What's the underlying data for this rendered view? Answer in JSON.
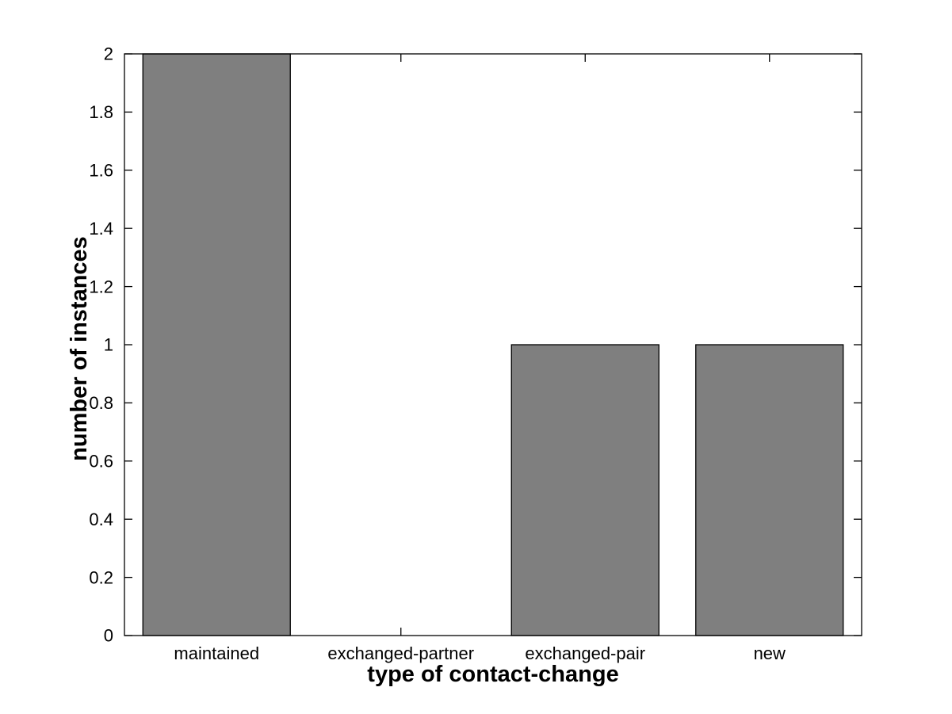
{
  "window": {
    "background": "#ffffff"
  },
  "chart_data": {
    "type": "bar",
    "title": "",
    "categories": [
      "maintained",
      "exchanged-partner",
      "exchanged-pair",
      "new"
    ],
    "values": [
      2,
      0,
      1,
      1
    ],
    "xlabel": "type of contact-change",
    "ylabel": "number of instances",
    "xlim": [
      0.5,
      4.5
    ],
    "ylim": [
      0,
      2
    ],
    "ytick_values": [
      0,
      0.2,
      0.4,
      0.6,
      0.8,
      1,
      1.2,
      1.4,
      1.6,
      1.8,
      2
    ],
    "ytick_labels": [
      "0",
      "0.2",
      "0.4",
      "0.6",
      "0.8",
      "1",
      "1.2",
      "1.4",
      "1.6",
      "1.8",
      "2"
    ],
    "bar_width_fraction": 0.8,
    "grid": false,
    "legend": null,
    "box": true,
    "tick_direction": "in",
    "colors": {
      "bar_fill": "#7f7f7f",
      "bar_edge": "#000000",
      "axes": "#000000",
      "text": "#000000",
      "plot_background": "#ffffff",
      "figure_background": "#ffffff"
    }
  }
}
